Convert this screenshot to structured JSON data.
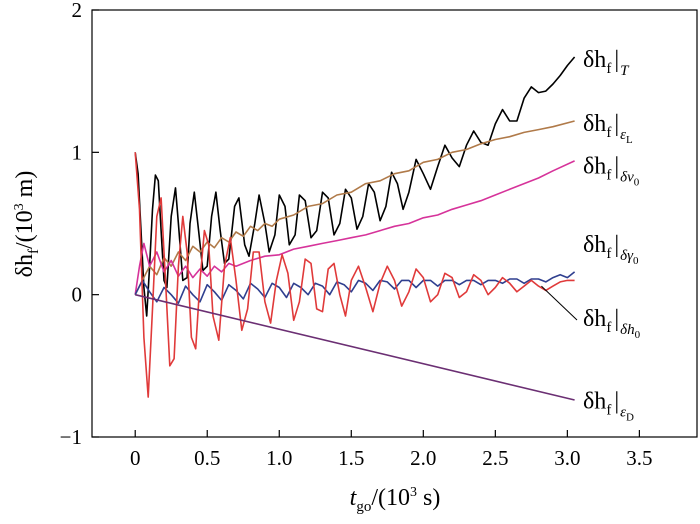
{
  "chart_data": {
    "type": "line",
    "title": "",
    "xlabel": "t_go/(10³ s)",
    "ylabel": "δh_f/(10³ m)",
    "xlabel_parts": {
      "var": "t",
      "sub": "go",
      "rest": "/(10",
      "sup": "3",
      "unit": " s)"
    },
    "ylabel_parts": {
      "var": "δh",
      "sub": "f",
      "rest": "/(10",
      "sup": "3",
      "unit": " m)"
    },
    "xlim": [
      -0.3,
      3.9
    ],
    "ylim": [
      -1,
      2
    ],
    "xticks": [
      0,
      0.5,
      1.0,
      1.5,
      2.0,
      2.5,
      3.0,
      3.5
    ],
    "xtick_labels": [
      "0",
      "0.5",
      "1.0",
      "1.5",
      "2.0",
      "2.5",
      "3.0",
      "3.5"
    ],
    "yticks": [
      -1,
      0,
      1,
      2
    ],
    "ytick_labels": [
      "−1",
      "0",
      "1",
      "2"
    ],
    "grid": false,
    "legend": "direct labels at right end of each line",
    "series": [
      {
        "name": "δh_f|_T",
        "label_main": "δh",
        "label_sub": "f",
        "label_cond": "T",
        "color": "#000000",
        "x": [
          0,
          0.02,
          0.04,
          0.06,
          0.08,
          0.1,
          0.12,
          0.14,
          0.16,
          0.18,
          0.2,
          0.22,
          0.25,
          0.28,
          0.3,
          0.33,
          0.36,
          0.38,
          0.41,
          0.44,
          0.47,
          0.5,
          0.53,
          0.56,
          0.59,
          0.62,
          0.65,
          0.69,
          0.72,
          0.76,
          0.79,
          0.83,
          0.86,
          0.9,
          0.93,
          0.97,
          1.0,
          1.04,
          1.07,
          1.11,
          1.14,
          1.18,
          1.22,
          1.26,
          1.3,
          1.34,
          1.38,
          1.42,
          1.46,
          1.5,
          1.54,
          1.58,
          1.62,
          1.66,
          1.7,
          1.74,
          1.78,
          1.82,
          1.86,
          1.9,
          1.95,
          2.0,
          2.05,
          2.1,
          2.15,
          2.2,
          2.25,
          2.3,
          2.35,
          2.4,
          2.45,
          2.5,
          2.55,
          2.6,
          2.65,
          2.7,
          2.75,
          2.8,
          2.85,
          2.9,
          2.95,
          3.0,
          3.05
        ],
        "y": [
          1.0,
          0.85,
          0.45,
          0.05,
          -0.15,
          0.2,
          0.6,
          0.84,
          0.8,
          0.45,
          0.1,
          0.05,
          0.55,
          0.75,
          0.5,
          0.1,
          0.12,
          0.5,
          0.72,
          0.45,
          0.17,
          0.2,
          0.55,
          0.72,
          0.45,
          0.22,
          0.25,
          0.62,
          0.68,
          0.35,
          0.27,
          0.5,
          0.7,
          0.5,
          0.3,
          0.42,
          0.7,
          0.62,
          0.35,
          0.42,
          0.7,
          0.66,
          0.4,
          0.45,
          0.72,
          0.68,
          0.42,
          0.5,
          0.74,
          0.68,
          0.46,
          0.55,
          0.78,
          0.72,
          0.52,
          0.62,
          0.86,
          0.78,
          0.6,
          0.72,
          0.95,
          0.85,
          0.74,
          0.9,
          1.05,
          0.96,
          0.9,
          1.05,
          1.15,
          1.07,
          1.05,
          1.2,
          1.3,
          1.22,
          1.22,
          1.38,
          1.46,
          1.42,
          1.43,
          1.48,
          1.54,
          1.61,
          1.67
        ],
        "label_y": 1.6
      },
      {
        "name": "δh_f|_εL",
        "label_main": "δh",
        "label_sub": "f",
        "label_cond": "εL",
        "color": "#b07a49",
        "x": [
          0,
          0.05,
          0.1,
          0.15,
          0.2,
          0.25,
          0.3,
          0.35,
          0.4,
          0.45,
          0.5,
          0.55,
          0.6,
          0.65,
          0.7,
          0.75,
          0.8,
          0.85,
          0.9,
          0.95,
          1.0,
          1.1,
          1.2,
          1.3,
          1.4,
          1.5,
          1.6,
          1.7,
          1.8,
          1.9,
          2.0,
          2.1,
          2.2,
          2.3,
          2.4,
          2.5,
          2.6,
          2.7,
          2.8,
          2.9,
          3.05
        ],
        "y": [
          0.0,
          0.1,
          0.2,
          0.14,
          0.26,
          0.2,
          0.3,
          0.24,
          0.34,
          0.3,
          0.37,
          0.33,
          0.4,
          0.37,
          0.44,
          0.41,
          0.48,
          0.45,
          0.5,
          0.48,
          0.53,
          0.56,
          0.62,
          0.64,
          0.7,
          0.72,
          0.78,
          0.8,
          0.85,
          0.87,
          0.93,
          0.95,
          1.0,
          1.02,
          1.06,
          1.09,
          1.11,
          1.14,
          1.16,
          1.18,
          1.22
        ],
        "label_y": 1.15
      },
      {
        "name": "δh_f|_δv0",
        "label_main": "δh",
        "label_sub": "f",
        "label_cond": "δv0",
        "color": "#d6339a",
        "x": [
          0,
          0.03,
          0.06,
          0.1,
          0.15,
          0.2,
          0.25,
          0.3,
          0.35,
          0.4,
          0.45,
          0.5,
          0.55,
          0.6,
          0.65,
          0.7,
          0.8,
          0.9,
          1.0,
          1.1,
          1.2,
          1.3,
          1.4,
          1.5,
          1.6,
          1.7,
          1.8,
          1.9,
          2.0,
          2.1,
          2.2,
          2.3,
          2.4,
          2.5,
          2.6,
          2.7,
          2.8,
          2.9,
          3.05
        ],
        "y": [
          0.0,
          0.2,
          0.36,
          0.2,
          0.3,
          0.16,
          0.24,
          0.13,
          0.2,
          0.12,
          0.18,
          0.13,
          0.2,
          0.16,
          0.22,
          0.2,
          0.24,
          0.27,
          0.28,
          0.32,
          0.34,
          0.36,
          0.38,
          0.4,
          0.42,
          0.45,
          0.48,
          0.5,
          0.54,
          0.56,
          0.6,
          0.63,
          0.66,
          0.7,
          0.74,
          0.78,
          0.82,
          0.87,
          0.94
        ],
        "label_y": 0.85
      },
      {
        "name": "δh_f|_δγ0",
        "label_main": "δh",
        "label_sub": "f",
        "label_cond": "δγ0",
        "color": "#2f3f8f",
        "x": [
          0,
          0.05,
          0.1,
          0.15,
          0.2,
          0.25,
          0.3,
          0.35,
          0.4,
          0.45,
          0.5,
          0.55,
          0.6,
          0.65,
          0.7,
          0.75,
          0.8,
          0.85,
          0.9,
          0.95,
          1.0,
          1.05,
          1.1,
          1.15,
          1.2,
          1.25,
          1.3,
          1.35,
          1.4,
          1.45,
          1.5,
          1.55,
          1.6,
          1.65,
          1.7,
          1.75,
          1.8,
          1.85,
          1.9,
          1.95,
          2.0,
          2.05,
          2.1,
          2.15,
          2.2,
          2.25,
          2.3,
          2.35,
          2.4,
          2.45,
          2.5,
          2.55,
          2.6,
          2.65,
          2.7,
          2.75,
          2.8,
          2.85,
          2.9,
          2.95,
          3.0,
          3.05
        ],
        "y": [
          0.0,
          0.1,
          0.02,
          -0.05,
          0.05,
          0.0,
          -0.06,
          0.06,
          0.0,
          -0.05,
          0.07,
          0.02,
          -0.04,
          0.07,
          0.03,
          -0.03,
          0.08,
          0.04,
          -0.02,
          0.08,
          0.05,
          -0.02,
          0.08,
          0.05,
          0.0,
          0.08,
          0.06,
          0.0,
          0.09,
          0.07,
          0.02,
          0.1,
          0.08,
          0.03,
          0.1,
          0.09,
          0.04,
          0.1,
          0.1,
          0.05,
          0.1,
          0.1,
          0.06,
          0.1,
          0.1,
          0.07,
          0.1,
          0.1,
          0.07,
          0.1,
          0.1,
          0.08,
          0.11,
          0.11,
          0.08,
          0.11,
          0.11,
          0.09,
          0.12,
          0.14,
          0.12,
          0.16
        ],
        "label_y": 0.3
      },
      {
        "name": "δh_f|_δh0",
        "label_main": "δh",
        "label_sub": "f",
        "label_cond": "δh0",
        "color": "#e03a3a",
        "x": [
          0,
          0.03,
          0.06,
          0.09,
          0.12,
          0.15,
          0.18,
          0.21,
          0.24,
          0.27,
          0.3,
          0.33,
          0.36,
          0.39,
          0.42,
          0.45,
          0.48,
          0.51,
          0.54,
          0.58,
          0.62,
          0.66,
          0.7,
          0.74,
          0.78,
          0.82,
          0.86,
          0.9,
          0.94,
          0.98,
          1.02,
          1.06,
          1.1,
          1.14,
          1.18,
          1.22,
          1.26,
          1.3,
          1.34,
          1.38,
          1.42,
          1.46,
          1.5,
          1.55,
          1.6,
          1.65,
          1.7,
          1.75,
          1.8,
          1.85,
          1.9,
          1.95,
          2.0,
          2.05,
          2.1,
          2.15,
          2.2,
          2.25,
          2.3,
          2.35,
          2.4,
          2.45,
          2.5,
          2.55,
          2.6,
          2.65,
          2.7,
          2.75,
          2.8,
          2.85,
          2.9,
          2.95,
          3.0,
          3.05
        ],
        "y": [
          1.0,
          0.6,
          -0.3,
          -0.72,
          -0.1,
          0.55,
          0.68,
          0.1,
          -0.5,
          -0.45,
          0.2,
          0.55,
          0.3,
          -0.3,
          -0.38,
          0.1,
          0.45,
          0.35,
          -0.15,
          -0.32,
          0.2,
          0.4,
          0.1,
          -0.25,
          -0.1,
          0.3,
          0.3,
          -0.05,
          -0.2,
          0.1,
          0.28,
          0.15,
          -0.18,
          -0.05,
          0.25,
          0.22,
          -0.1,
          -0.12,
          0.18,
          0.22,
          0.0,
          -0.15,
          0.1,
          0.2,
          0.05,
          -0.12,
          0.08,
          0.2,
          0.1,
          -0.08,
          0.02,
          0.18,
          0.12,
          -0.05,
          0.0,
          0.15,
          0.12,
          -0.02,
          0.02,
          0.14,
          0.1,
          0.0,
          0.05,
          0.12,
          0.08,
          0.02,
          0.06,
          0.1,
          0.06,
          0.03,
          0.06,
          0.09,
          0.1,
          0.1
        ],
        "label_y": -0.22
      },
      {
        "name": "δh_f|_εD",
        "label_main": "δh",
        "label_sub": "f",
        "label_cond": "εD",
        "color": "#6b2f73",
        "x": [
          0,
          3.05
        ],
        "y": [
          0.0,
          -0.74
        ],
        "label_y": -0.8
      }
    ]
  }
}
